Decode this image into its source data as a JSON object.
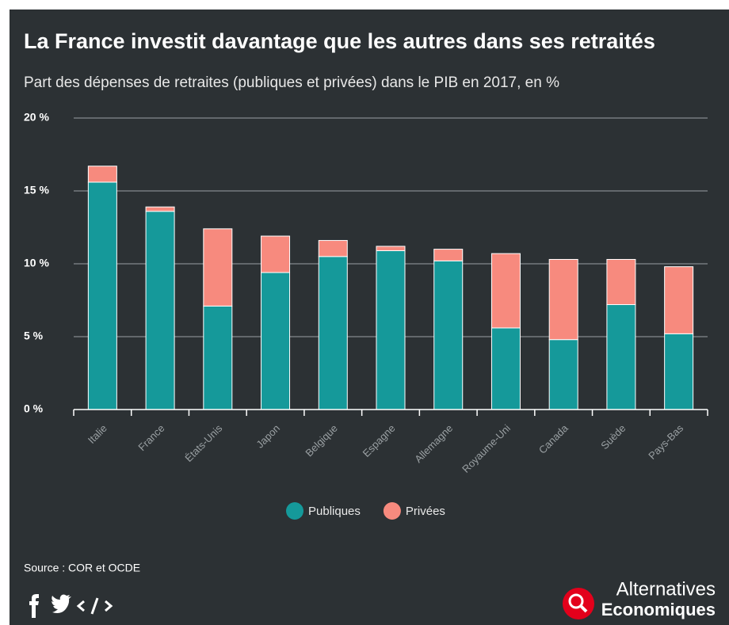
{
  "chart_data": {
    "type": "stacked_bar",
    "title": "La France investit davantage que les autres dans ses retraités",
    "subtitle": "Part des dépenses de retraites (publiques et privées) dans le PIB en 2017, en %",
    "categories": [
      "Italie",
      "France",
      "États-Unis",
      "Japon",
      "Belgique",
      "Espagne",
      "Allemagne",
      "Royaume-Uni",
      "Canada",
      "Suède",
      "Pays-Bas"
    ],
    "series": [
      {
        "name": "Publiques",
        "color": "#15999a",
        "values": [
          15.6,
          13.6,
          7.1,
          9.4,
          10.5,
          10.9,
          10.2,
          5.6,
          4.8,
          7.2,
          5.2
        ]
      },
      {
        "name": "Privées",
        "color": "#f78a7e",
        "values": [
          1.1,
          0.3,
          5.3,
          2.5,
          1.1,
          0.3,
          0.8,
          5.1,
          5.5,
          3.1,
          4.6
        ]
      }
    ],
    "ylim": [
      0,
      20
    ],
    "yticks": [
      {
        "value": 0,
        "label": "0 %"
      },
      {
        "value": 5,
        "label": "5 %"
      },
      {
        "value": 10,
        "label": "10 %"
      },
      {
        "value": 15,
        "label": "15 %"
      },
      {
        "value": 20,
        "label": "20 %"
      }
    ],
    "grid": true,
    "legend": "bottom",
    "source": "Source : COR et OCDE",
    "brand": [
      "Alternatives",
      "Economiques"
    ]
  }
}
